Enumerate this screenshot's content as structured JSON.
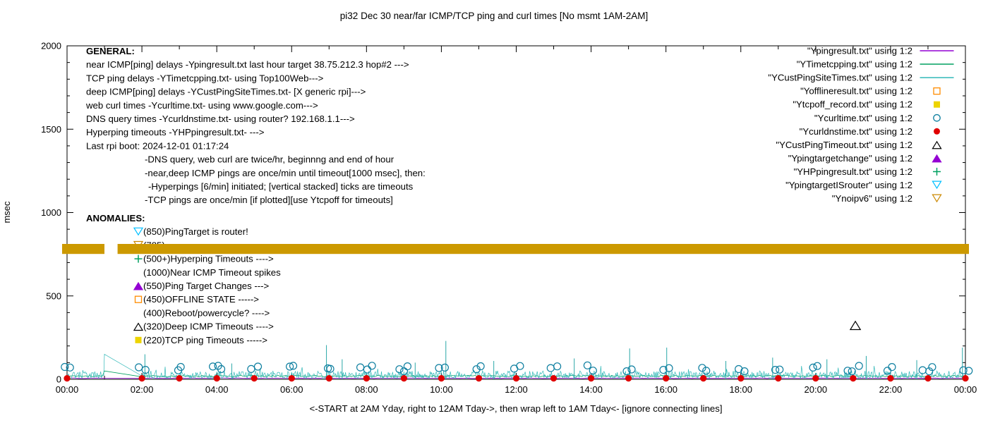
{
  "title": "pi32 Dec 30  near/far ICMP/TCP ping and curl times [No msmt 1AM-2AM]",
  "axes": {
    "ylabel": "msec",
    "xnote": "<-START at 2AM Yday, right to 12AM Tday->, then wrap left to 1AM Tday<- [ignore connecting lines]"
  },
  "general": {
    "heading": "GENERAL:",
    "lines": [
      "near ICMP[ping] delays -Ypingresult.txt last hour target 38.75.212.3 hop#2 --->",
      "TCP ping delays -YTimetcpping.txt- using Top100Web--->",
      "deep ICMP[ping] delays -YCustPingSiteTimes.txt- [X generic rpi]--->",
      "web curl times -Ycurltime.txt- using www.google.com--->",
      "DNS query times -Ycurldnstime.txt- using router? 192.168.1.1--->",
      "Hyperping timeouts -YHPpingresult.txt- --->",
      "Last rpi boot: 2024-12-01 01:17:24"
    ],
    "indented": [
      "-DNS query, web curl are twice/hr, beginnng and end of hour",
      "-near,deep ICMP pings are once/min until timeout[1000 msec], then:",
      "-Hyperpings [6/min] initiated; [vertical stacked] ticks are timeouts",
      "-TCP pings are once/min [if plotted][use Ytcpoff for timeouts]"
    ]
  },
  "anomalies": {
    "heading": "ANOMALIES:",
    "items": [
      {
        "text": "(850)PingTarget is router!",
        "marker": "triangle-down-open",
        "color": "#00bfff"
      },
      {
        "text": "(785)",
        "marker": "triangle-down-open",
        "color": "#cc8800"
      },
      {
        "text": "(500+)Hyperping Timeouts ---->",
        "marker": "plus",
        "color": "#00a060"
      },
      {
        "text": "(1000)Near ICMP Timeout spikes",
        "marker": "",
        "color": ""
      },
      {
        "text": "(550)Ping Target Changes --->",
        "marker": "triangle-filled",
        "color": "#9400d3"
      },
      {
        "text": "(450)OFFLINE STATE ----->",
        "marker": "square-open",
        "color": "#ff8c00"
      },
      {
        "text": "(400)Reboot/powercycle? ---->",
        "marker": "",
        "color": ""
      },
      {
        "text": "(320)Deep ICMP Timeouts ---->",
        "marker": "triangle-open",
        "color": "#000000"
      },
      {
        "text": "(220)TCP ping Timeouts ----->",
        "marker": "square-filled",
        "color": "#edd400"
      }
    ]
  },
  "legend": [
    {
      "label": "\"Ypingresult.txt\" using 1:2",
      "marker": "line",
      "color": "#9400d3"
    },
    {
      "label": "\"YTimetcpping.txt\" using 1:2",
      "marker": "line",
      "color": "#00a060"
    },
    {
      "label": "\"YCustPingSiteTimes.txt\" using 1:2",
      "marker": "line",
      "color": "#31b8b8"
    },
    {
      "label": "\"Yofflineresult.txt\" using 1:2",
      "marker": "square-open",
      "color": "#ff8c00"
    },
    {
      "label": "\"Ytcpoff_record.txt\" using 1:2",
      "marker": "square-filled",
      "color": "#edd400"
    },
    {
      "label": "\"Ycurltime.txt\" using 1:2",
      "marker": "circle-open",
      "color": "#0e7fa0"
    },
    {
      "label": "\"Ycurldnstime.txt\" using 1:2",
      "marker": "circle-filled",
      "color": "#e00000"
    },
    {
      "label": "\"YCustPingTimeout.txt\" using 1:2",
      "marker": "triangle-open",
      "color": "#000000"
    },
    {
      "label": "\"Ypingtargetchange\" using 1:2",
      "marker": "triangle-filled",
      "color": "#9400d3"
    },
    {
      "label": "\"YHPpingresult.txt\" using 1:2",
      "marker": "plus",
      "color": "#00a060"
    },
    {
      "label": "\"YpingtargetISrouter\" using 1:2",
      "marker": "triangle-down-open",
      "color": "#00bfff"
    },
    {
      "label": "\"Ynoipv6\" using 1:2",
      "marker": "triangle-down-open",
      "color": "#cc8800"
    }
  ],
  "chart_data": {
    "type": "line",
    "title": "pi32 Dec 30 near/far ICMP/TCP ping and curl times [No msmt 1AM-2AM]",
    "ylabel": "msec",
    "ylim": [
      0,
      2000
    ],
    "yticks": [
      0,
      500,
      1000,
      1500,
      2000
    ],
    "y_minor_step": 100,
    "x_range_hours": [
      0,
      24
    ],
    "xtick_labels": [
      "00:00",
      "02:00",
      "04:00",
      "06:00",
      "08:00",
      "10:00",
      "12:00",
      "14:00",
      "16:00",
      "18:00",
      "20:00",
      "22:00",
      "00:00"
    ],
    "measurement_gap_hours": [
      1,
      2
    ],
    "series_notes": {
      "Ypingresult": {
        "style": "line",
        "color": "#9400d3",
        "baseline_msec": 7
      },
      "YTimetcpping": {
        "style": "line",
        "color": "#00a060",
        "baseline_msec": 20
      },
      "YCustPingSiteTimes": {
        "style": "noisy-line",
        "color": "#31b8b8",
        "range_msec": [
          5,
          90
        ]
      },
      "Ycurltime": {
        "style": "open-circles",
        "color": "#0e7fa0",
        "hourly_range_msec": [
          45,
          85
        ]
      },
      "Ycurldnstime": {
        "style": "filled-circles",
        "color": "#e00000",
        "hourly_msec": 5
      },
      "YCustPingTimeout": {
        "style": "open-triangles",
        "color": "#000000",
        "points": [
          [
            21.06,
            320
          ]
        ]
      },
      "Ynoipv6": {
        "style": "band",
        "color": "#cc9900",
        "band_msec": [
          752,
          812
        ],
        "gap_hours": [
          1.0,
          1.35
        ]
      }
    },
    "spikes_msec": [
      [
        2.08,
        150
      ],
      [
        4.4,
        95
      ],
      [
        6.93,
        205
      ],
      [
        7.35,
        120
      ],
      [
        9.3,
        100
      ],
      [
        10.12,
        230
      ],
      [
        11.4,
        110
      ],
      [
        13.55,
        125
      ],
      [
        15.03,
        185
      ],
      [
        16.02,
        190
      ],
      [
        17.6,
        110
      ],
      [
        18.85,
        130
      ],
      [
        20.3,
        120
      ],
      [
        21.35,
        140
      ],
      [
        22.7,
        115
      ],
      [
        23.92,
        190
      ]
    ],
    "noise": {
      "seed": 12345,
      "step_h": 0.02,
      "base_msec": 6,
      "amp_msec": 45,
      "spike_prob": 0.05,
      "spike_extra_msec": 35,
      "connector_value_at_1h": 150
    }
  }
}
